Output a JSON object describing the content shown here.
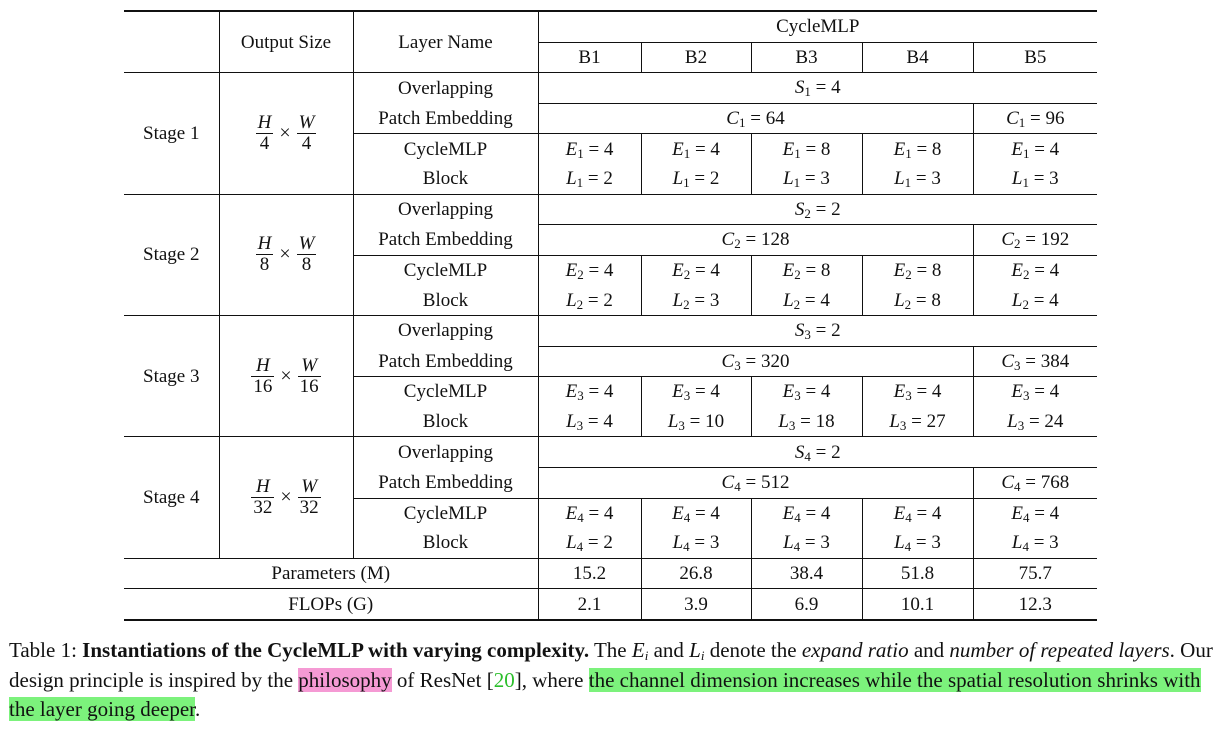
{
  "header": {
    "output_size": "Output Size",
    "layer_name": "Layer Name",
    "model": "CycleMLP",
    "variants": [
      "B1",
      "B2",
      "B3",
      "B4",
      "B5"
    ]
  },
  "layer_labels": {
    "overlapping": "Overlapping",
    "patch_embedding": "Patch Embedding",
    "cyclemlp": "CycleMLP",
    "block": "Block"
  },
  "stages": [
    {
      "name": "Stage 1",
      "num": "H",
      "num2": "W",
      "den": "4",
      "s": {
        "sym": "S",
        "sub": "1",
        "val": "4"
      },
      "c": {
        "sym": "C",
        "sub": "1",
        "val_b1_b4": "64",
        "val_b5": "96"
      },
      "e_vals": [
        "4",
        "4",
        "8",
        "8",
        "4"
      ],
      "e_sub": "1",
      "l_vals": [
        "2",
        "2",
        "3",
        "3",
        "3"
      ],
      "l_sub": "1"
    },
    {
      "name": "Stage 2",
      "num": "H",
      "num2": "W",
      "den": "8",
      "s": {
        "sym": "S",
        "sub": "2",
        "val": "2"
      },
      "c": {
        "sym": "C",
        "sub": "2",
        "val_b1_b4": "128",
        "val_b5": "192"
      },
      "e_vals": [
        "4",
        "4",
        "8",
        "8",
        "4"
      ],
      "e_sub": "2",
      "l_vals": [
        "2",
        "3",
        "4",
        "8",
        "4"
      ],
      "l_sub": "2"
    },
    {
      "name": "Stage 3",
      "num": "H",
      "num2": "W",
      "den": "16",
      "s": {
        "sym": "S",
        "sub": "3",
        "val": "2"
      },
      "c": {
        "sym": "C",
        "sub": "3",
        "val_b1_b4": "320",
        "val_b5": "384"
      },
      "e_vals": [
        "4",
        "4",
        "4",
        "4",
        "4"
      ],
      "e_sub": "3",
      "l_vals": [
        "4",
        "10",
        "18",
        "27",
        "24"
      ],
      "l_sub": "3"
    },
    {
      "name": "Stage 4",
      "num": "H",
      "num2": "W",
      "den": "32",
      "s": {
        "sym": "S",
        "sub": "4",
        "val": "2"
      },
      "c": {
        "sym": "C",
        "sub": "4",
        "val_b1_b4": "512",
        "val_b5": "768"
      },
      "e_vals": [
        "4",
        "4",
        "4",
        "4",
        "4"
      ],
      "e_sub": "4",
      "l_vals": [
        "2",
        "3",
        "3",
        "3",
        "3"
      ],
      "l_sub": "4"
    }
  ],
  "params": {
    "label": "Parameters (M)",
    "values": [
      "15.2",
      "26.8",
      "38.4",
      "51.8",
      "75.7"
    ]
  },
  "flops": {
    "label": "FLOPs (G)",
    "values": [
      "2.1",
      "3.9",
      "6.9",
      "10.1",
      "12.3"
    ]
  },
  "caption": {
    "prefix": "Table 1: ",
    "bold": "Instantiations of the CycleMLP with varying complexity.",
    "t1": " The ",
    "ei": "E",
    "i": "i",
    "t2": " and ",
    "li": "L",
    "t3": " denote the ",
    "expand": "expand ratio",
    "t4": " and ",
    "number": "number of repeated layers",
    "t5": ". Our design principle is inspired by the ",
    "philosophy": "philosophy",
    "t6": " of ResNet [",
    "ref": "20",
    "t7": "], where ",
    "green": "the channel dimension increases while the spatial resolution shrinks with the layer going deeper",
    "t8": "."
  },
  "colors": {
    "highlight_pink": "#f59ad4",
    "highlight_green": "#7cf27c",
    "ref_link": "#2cbf2c"
  }
}
